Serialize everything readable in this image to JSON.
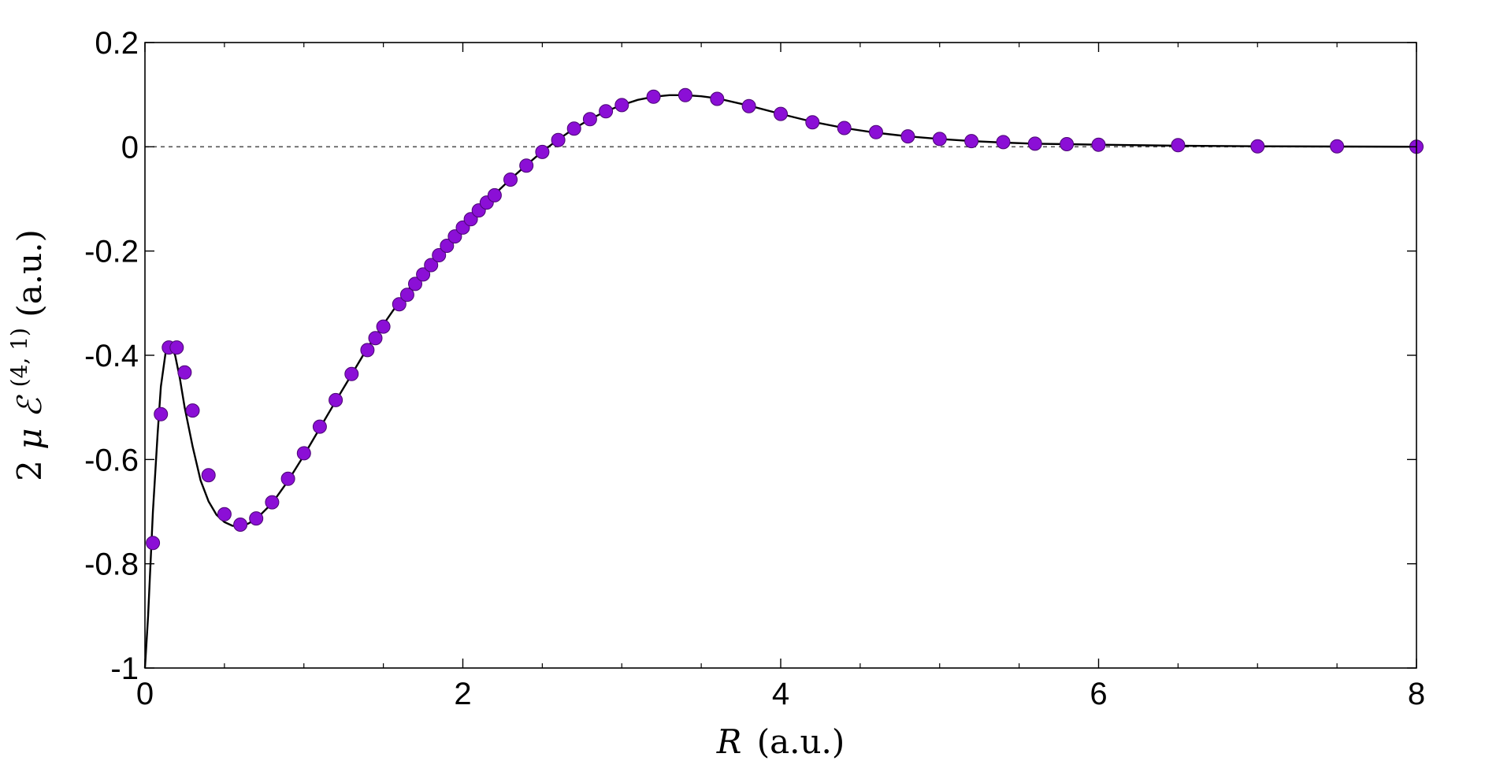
{
  "chart_data": {
    "type": "scatter",
    "xlabel": {
      "symbol": "R",
      "unit": "(a.u.)"
    },
    "ylabel": {
      "prefix": "2",
      "mu": "μ",
      "E": "ℰ",
      "superscript": "(4, 1)",
      "unit": "(a.u.)"
    },
    "xlim": [
      0,
      8
    ],
    "ylim": [
      -1,
      0.2
    ],
    "x_ticks": [
      0,
      2,
      4,
      6,
      8
    ],
    "x_tick_labels": [
      "0",
      "2",
      "4",
      "6",
      "8"
    ],
    "y_ticks": [
      0.2,
      0,
      -0.2,
      -0.4,
      -0.6,
      -0.8,
      -1
    ],
    "y_tick_labels": [
      "0.2",
      "0",
      "-0.2",
      "-0.4",
      "-0.6",
      "-0.8",
      "-1"
    ],
    "x_minor_step": 0.5,
    "zero_line": {
      "y": 0,
      "style": "dashed",
      "color": "#555555"
    },
    "colors": {
      "points": "#8b0fd6",
      "point_edge": "#4a0673",
      "curve": "#000000"
    },
    "series": [
      {
        "kind": "points",
        "x": [
          0.05,
          0.1,
          0.15,
          0.2,
          0.25,
          0.3,
          0.4,
          0.5,
          0.6,
          0.7,
          0.8,
          0.9,
          1.0,
          1.1,
          1.2,
          1.3,
          1.4,
          1.45,
          1.5,
          1.6,
          1.65,
          1.7,
          1.75,
          1.8,
          1.85,
          1.9,
          1.95,
          2.0,
          2.05,
          2.1,
          2.15,
          2.2,
          2.3,
          2.4,
          2.5,
          2.6,
          2.7,
          2.8,
          2.9,
          3.0,
          3.2,
          3.4,
          3.6,
          3.8,
          4.0,
          4.2,
          4.4,
          4.6,
          4.8,
          5.0,
          5.2,
          5.4,
          5.6,
          5.8,
          6.0,
          6.5,
          7.0,
          7.5,
          8.0
        ],
        "y": [
          -0.76,
          -0.513,
          -0.385,
          -0.385,
          -0.433,
          -0.506,
          -0.63,
          -0.705,
          -0.725,
          -0.713,
          -0.682,
          -0.637,
          -0.588,
          -0.537,
          -0.486,
          -0.436,
          -0.39,
          -0.367,
          -0.345,
          -0.302,
          -0.284,
          -0.263,
          -0.245,
          -0.227,
          -0.208,
          -0.19,
          -0.172,
          -0.155,
          -0.139,
          -0.122,
          -0.107,
          -0.093,
          -0.063,
          -0.036,
          -0.01,
          0.013,
          0.035,
          0.053,
          0.068,
          0.08,
          0.096,
          0.099,
          0.092,
          0.078,
          0.063,
          0.047,
          0.036,
          0.028,
          0.02,
          0.015,
          0.011,
          0.009,
          0.006,
          0.005,
          0.004,
          0.003,
          0.001,
          0.001,
          0.0
        ]
      },
      {
        "kind": "line",
        "x": [
          0.0,
          0.02,
          0.05,
          0.08,
          0.1,
          0.13,
          0.16,
          0.19,
          0.22,
          0.25,
          0.3,
          0.35,
          0.4,
          0.45,
          0.5,
          0.55,
          0.6,
          0.65,
          0.7,
          0.8,
          0.9,
          1.0,
          1.1,
          1.2,
          1.3,
          1.4,
          1.5,
          1.6,
          1.7,
          1.8,
          1.9,
          2.0,
          2.1,
          2.2,
          2.3,
          2.4,
          2.5,
          2.6,
          2.7,
          2.8,
          2.9,
          3.0,
          3.1,
          3.2,
          3.3,
          3.4,
          3.5,
          3.6,
          3.8,
          4.0,
          4.2,
          4.4,
          4.6,
          4.8,
          5.0,
          5.2,
          5.4,
          5.6,
          5.8,
          6.0,
          6.5,
          7.0,
          7.5,
          8.0
        ],
        "y": [
          -1.0,
          -0.9,
          -0.7,
          -0.55,
          -0.46,
          -0.395,
          -0.38,
          -0.4,
          -0.445,
          -0.5,
          -0.575,
          -0.64,
          -0.68,
          -0.706,
          -0.72,
          -0.727,
          -0.728,
          -0.723,
          -0.714,
          -0.684,
          -0.641,
          -0.592,
          -0.54,
          -0.488,
          -0.437,
          -0.386,
          -0.341,
          -0.297,
          -0.257,
          -0.22,
          -0.185,
          -0.152,
          -0.12,
          -0.091,
          -0.062,
          -0.035,
          -0.009,
          0.014,
          0.035,
          0.053,
          0.068,
          0.08,
          0.09,
          0.096,
          0.099,
          0.099,
          0.097,
          0.093,
          0.079,
          0.063,
          0.048,
          0.036,
          0.027,
          0.02,
          0.015,
          0.011,
          0.008,
          0.006,
          0.005,
          0.004,
          0.002,
          0.001,
          0.0005,
          0.0
        ]
      }
    ]
  }
}
